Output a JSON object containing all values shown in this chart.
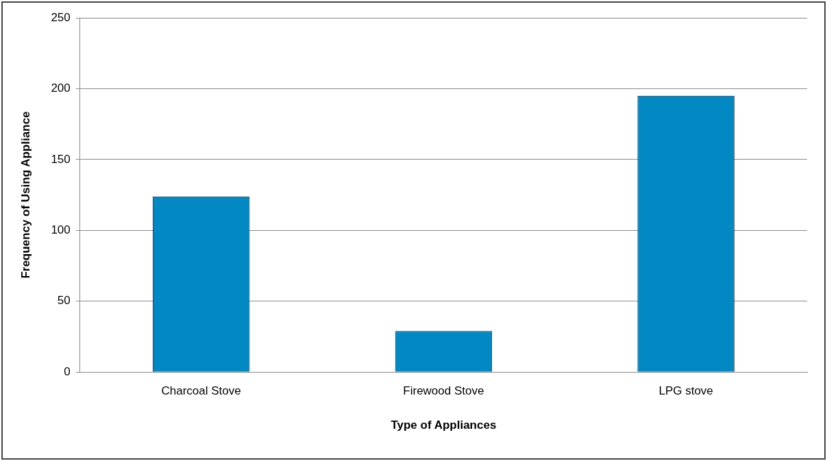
{
  "chart_data": {
    "type": "bar",
    "xlabel": "Type of Appliances",
    "ylabel": "Frequency of Using Appliance",
    "categories": [
      "Charcoal Stove",
      "Firewood Stove",
      "LPG stove"
    ],
    "values": [
      124,
      29,
      195
    ],
    "color": "#0288c2",
    "ylim": [
      0,
      250
    ],
    "yticks": [
      0,
      50,
      100,
      150,
      200,
      250
    ],
    "grid": "y",
    "legend": false
  }
}
